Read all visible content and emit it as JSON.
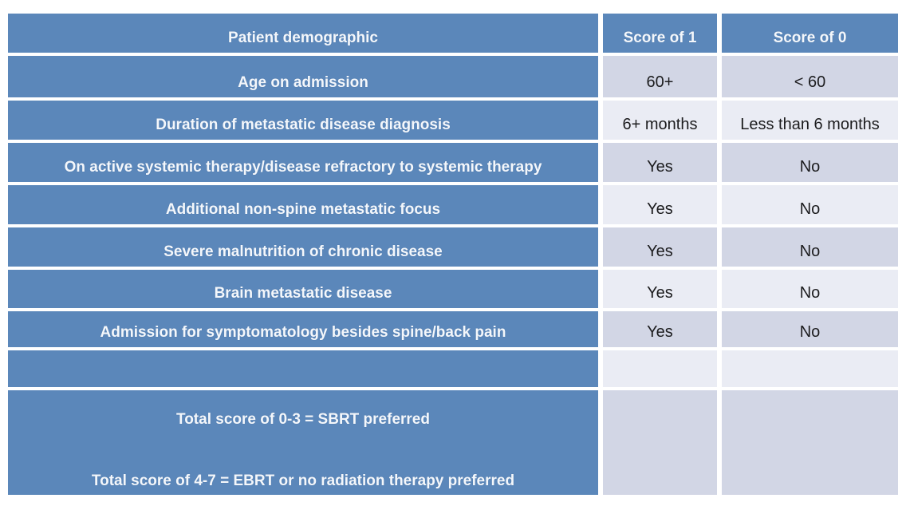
{
  "table": {
    "header": {
      "demographic": "Patient demographic",
      "score1": "Score of 1",
      "score0": "Score of 0"
    },
    "rows": [
      {
        "label": "Age on admission",
        "score1": "60+",
        "score0": "< 60"
      },
      {
        "label": "Duration of metastatic disease diagnosis",
        "score1": "6+ months",
        "score0": "Less than 6 months"
      },
      {
        "label": "On active systemic therapy/disease refractory to systemic therapy",
        "score1": "Yes",
        "score0": "No"
      },
      {
        "label": "Additional non-spine metastatic focus",
        "score1": "Yes",
        "score0": "No"
      },
      {
        "label": "Severe malnutrition of chronic disease",
        "score1": "Yes",
        "score0": "No"
      },
      {
        "label": "Brain metastatic disease",
        "score1": "Yes",
        "score0": "No"
      },
      {
        "label": "Admission for symptomatology besides spine/back pain",
        "score1": "Yes",
        "score0": "No"
      }
    ],
    "empty_row": {
      "label": "",
      "score1": "",
      "score0": ""
    },
    "footer": {
      "line1": "Total score of 0-3 = SBRT preferred",
      "line2": "Total score of 4-7 = EBRT or no radiation therapy preferred"
    }
  },
  "colors": {
    "header_blue": "#5b87ba",
    "row_shade_dark": "#d2d6e5",
    "row_shade_light": "#eaecf4",
    "text_on_blue": "#f4f7fb",
    "text_on_light": "#1c1c1e",
    "grid_line": "#ffffff"
  }
}
